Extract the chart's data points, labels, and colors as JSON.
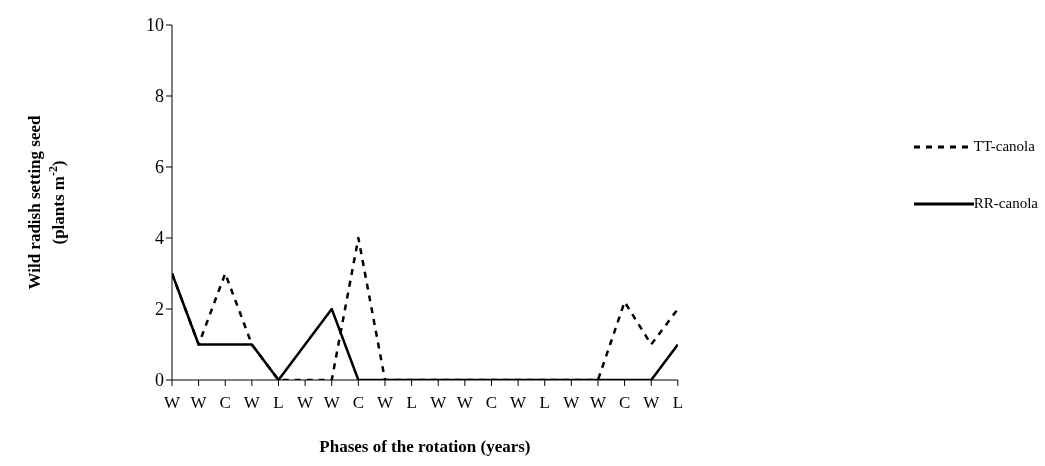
{
  "chart_data": {
    "type": "line",
    "xlabel": "Phases of the rotation (years)",
    "ylabel": "Wild radish setting seed\n(plants m$^{-2}$)",
    "categories": [
      "W",
      "W",
      "C",
      "W",
      "L",
      "W",
      "W",
      "C",
      "W",
      "L",
      "W",
      "W",
      "C",
      "W",
      "L",
      "W",
      "W",
      "C",
      "W",
      "L"
    ],
    "series": [
      {
        "name": "TT-canola",
        "color": "#000000",
        "line_style": "dashed",
        "values": [
          3,
          1,
          3,
          1,
          0,
          0,
          0,
          4,
          0,
          0,
          0,
          0,
          0,
          0,
          0,
          0,
          0,
          2.2,
          1,
          2
        ]
      },
      {
        "name": "RR-canola",
        "color": "#000000",
        "line_style": "solid",
        "values": [
          3,
          1,
          1,
          1,
          0,
          1,
          2,
          0,
          0,
          0,
          0,
          0,
          0,
          0,
          0,
          0,
          0,
          0,
          0,
          1
        ]
      }
    ],
    "ylim": [
      0,
      10
    ],
    "yticks": [
      0,
      2,
      4,
      6,
      8,
      10
    ],
    "grid": false,
    "legend": "right",
    "marker": "none"
  }
}
